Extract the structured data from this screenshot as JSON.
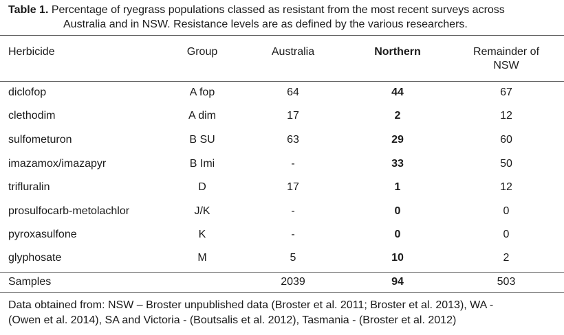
{
  "caption": {
    "label": "Table 1.",
    "line1": " Percentage of ryegrass populations classed as resistant from the most recent surveys across",
    "line2": "Australia and in NSW. Resistance levels are as defined by the various researchers."
  },
  "headers": {
    "herbicide": "Herbicide",
    "group": "Group",
    "australia": "Australia",
    "northern": "Northern",
    "remainder_line1": "Remainder of",
    "remainder_line2": "NSW"
  },
  "rows": [
    {
      "herbicide": "diclofop",
      "group": "A fop",
      "australia": "64",
      "northern": "44",
      "remainder": "67"
    },
    {
      "herbicide": "clethodim",
      "group": "A dim",
      "australia": "17",
      "northern": "2",
      "remainder": "12"
    },
    {
      "herbicide": "sulfometuron",
      "group": "B SU",
      "australia": "63",
      "northern": "29",
      "remainder": "60"
    },
    {
      "herbicide": "imazamox/imazapyr",
      "group": "B Imi",
      "australia": "-",
      "northern": "33",
      "remainder": "50"
    },
    {
      "herbicide": "trifluralin",
      "group": "D",
      "australia": "17",
      "northern": "1",
      "remainder": "12"
    },
    {
      "herbicide": "prosulfocarb-metolachlor",
      "group": "J/K",
      "australia": "-",
      "northern": "0",
      "remainder": "0"
    },
    {
      "herbicide": "pyroxasulfone",
      "group": "K",
      "australia": "-",
      "northern": "0",
      "remainder": "0"
    },
    {
      "herbicide": "glyphosate",
      "group": "M",
      "australia": "5",
      "northern": "10",
      "remainder": "2"
    }
  ],
  "samples": {
    "label": "Samples",
    "australia": "2039",
    "northern": "94",
    "remainder": "503"
  },
  "footnote": {
    "line1": "Data obtained from: NSW – Broster unpublished data (Broster et al. 2011; Broster et al. 2013), WA -",
    "line2": "(Owen et al. 2014), SA and Victoria - (Boutsalis et al. 2012), Tasmania - (Broster et al. 2012)"
  }
}
